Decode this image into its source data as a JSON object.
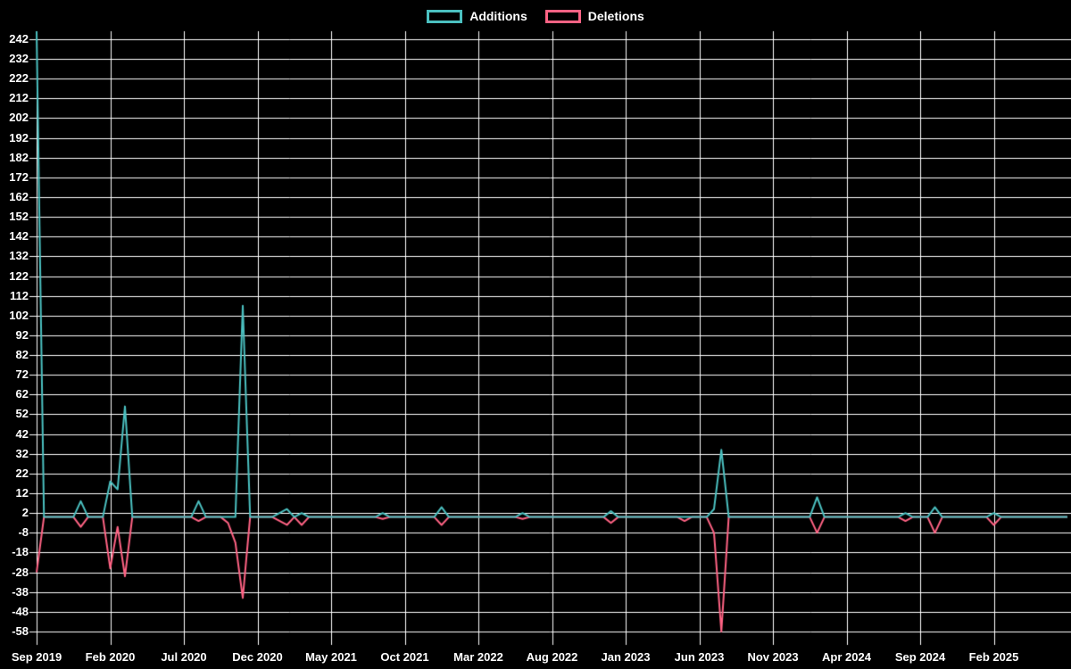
{
  "chart_data": {
    "type": "line",
    "title": "",
    "xlabel": "",
    "ylabel": "",
    "background_color": "#000000",
    "grid": true,
    "grid_color": "#ffffff",
    "text_color": "#ffffff",
    "legend_position": "top",
    "ylim": [
      -58,
      246
    ],
    "y_ticks": [
      -58,
      -48,
      -38,
      -28,
      -18,
      -8,
      2,
      12,
      22,
      32,
      42,
      52,
      62,
      72,
      82,
      92,
      102,
      112,
      122,
      132,
      142,
      152,
      162,
      172,
      182,
      192,
      202,
      212,
      222,
      232,
      242
    ],
    "x_ticks": [
      {
        "label": "Sep 2019",
        "date": "2019-09"
      },
      {
        "label": "Feb 2020",
        "date": "2020-02"
      },
      {
        "label": "Jul 2020",
        "date": "2020-07"
      },
      {
        "label": "Dec 2020",
        "date": "2020-12"
      },
      {
        "label": "May 2021",
        "date": "2021-05"
      },
      {
        "label": "Oct 2021",
        "date": "2021-10"
      },
      {
        "label": "Mar 2022",
        "date": "2022-03"
      },
      {
        "label": "Aug 2022",
        "date": "2022-08"
      },
      {
        "label": "Jan 2023",
        "date": "2023-01"
      },
      {
        "label": "Jun 2023",
        "date": "2023-06"
      },
      {
        "label": "Nov 2023",
        "date": "2023-11"
      },
      {
        "label": "Apr 2024",
        "date": "2024-04"
      },
      {
        "label": "Sep 2024",
        "date": "2024-09"
      },
      {
        "label": "Feb 2025",
        "date": "2025-02"
      }
    ],
    "series": [
      {
        "name": "Additions",
        "color": "#4bc0c0"
      },
      {
        "name": "Deletions",
        "color": "#ff6384"
      }
    ],
    "columns": [
      "date",
      "additions",
      "deletions"
    ],
    "points": [
      [
        "2019-09",
        246,
        -28
      ],
      [
        "2019-09-15",
        0,
        0
      ],
      [
        "2019-10",
        0,
        0
      ],
      [
        "2019-11",
        0,
        0
      ],
      [
        "2019-11-15",
        0,
        0
      ],
      [
        "2019-12",
        8,
        -5
      ],
      [
        "2019-12-15",
        0,
        0
      ],
      [
        "2020-01",
        0,
        0
      ],
      [
        "2020-01-15",
        0,
        0
      ],
      [
        "2020-02",
        18,
        -26
      ],
      [
        "2020-02-15",
        14,
        -5
      ],
      [
        "2020-03",
        56,
        -30
      ],
      [
        "2020-03-15",
        0,
        0
      ],
      [
        "2020-04",
        0,
        0
      ],
      [
        "2020-05",
        0,
        0
      ],
      [
        "2020-06",
        0,
        0
      ],
      [
        "2020-07",
        0,
        0
      ],
      [
        "2020-07-15",
        0,
        0
      ],
      [
        "2020-08",
        8,
        -2
      ],
      [
        "2020-08-15",
        0,
        0
      ],
      [
        "2020-09",
        0,
        0
      ],
      [
        "2020-09-15",
        0,
        0
      ],
      [
        "2020-10",
        0,
        -3
      ],
      [
        "2020-10-15",
        0,
        -13
      ],
      [
        "2020-11",
        107,
        -41
      ],
      [
        "2020-11-15",
        0,
        0
      ],
      [
        "2020-12",
        0,
        0
      ],
      [
        "2021-01",
        0,
        0
      ],
      [
        "2021-02",
        4,
        -4
      ],
      [
        "2021-02-15",
        0,
        0
      ],
      [
        "2021-03",
        2,
        -4
      ],
      [
        "2021-03-15",
        0,
        0
      ],
      [
        "2021-04",
        0,
        0
      ],
      [
        "2021-05",
        0,
        0
      ],
      [
        "2021-06",
        0,
        0
      ],
      [
        "2021-07",
        0,
        0
      ],
      [
        "2021-08",
        0,
        0
      ],
      [
        "2021-08-15",
        2,
        -1
      ],
      [
        "2021-09",
        0,
        0
      ],
      [
        "2021-10",
        0,
        0
      ],
      [
        "2021-11",
        0,
        0
      ],
      [
        "2021-12",
        0,
        0
      ],
      [
        "2021-12-15",
        5,
        -4
      ],
      [
        "2022-01",
        0,
        0
      ],
      [
        "2022-02",
        0,
        0
      ],
      [
        "2022-03",
        0,
        0
      ],
      [
        "2022-04",
        0,
        0
      ],
      [
        "2022-05",
        0,
        0
      ],
      [
        "2022-05-15",
        0,
        0
      ],
      [
        "2022-06",
        2,
        -1
      ],
      [
        "2022-06-15",
        0,
        0
      ],
      [
        "2022-07",
        0,
        0
      ],
      [
        "2022-08",
        0,
        0
      ],
      [
        "2022-09",
        0,
        0
      ],
      [
        "2022-10",
        0,
        0
      ],
      [
        "2022-11",
        0,
        0
      ],
      [
        "2022-11-15",
        0,
        0
      ],
      [
        "2022-12",
        3,
        -3
      ],
      [
        "2022-12-15",
        0,
        0
      ],
      [
        "2023-01",
        0,
        0
      ],
      [
        "2023-02",
        0,
        0
      ],
      [
        "2023-03",
        0,
        0
      ],
      [
        "2023-04",
        0,
        0
      ],
      [
        "2023-04-15",
        0,
        0
      ],
      [
        "2023-05",
        0,
        -2
      ],
      [
        "2023-05-15",
        0,
        0
      ],
      [
        "2023-06",
        0,
        0
      ],
      [
        "2023-06-15",
        0,
        0
      ],
      [
        "2023-07",
        4,
        -8
      ],
      [
        "2023-07-15",
        34,
        -58
      ],
      [
        "2023-08",
        0,
        0
      ],
      [
        "2023-09",
        0,
        0
      ],
      [
        "2023-10",
        0,
        0
      ],
      [
        "2023-11",
        0,
        0
      ],
      [
        "2023-12",
        0,
        0
      ],
      [
        "2024-01",
        0,
        0
      ],
      [
        "2024-01-15",
        0,
        0
      ],
      [
        "2024-02",
        10,
        -8
      ],
      [
        "2024-02-15",
        0,
        0
      ],
      [
        "2024-03",
        0,
        0
      ],
      [
        "2024-04",
        0,
        0
      ],
      [
        "2024-05",
        0,
        0
      ],
      [
        "2024-06",
        0,
        0
      ],
      [
        "2024-07",
        0,
        0
      ],
      [
        "2024-07-15",
        0,
        0
      ],
      [
        "2024-08",
        2,
        -2
      ],
      [
        "2024-08-15",
        0,
        0
      ],
      [
        "2024-09",
        0,
        0
      ],
      [
        "2024-09-15",
        0,
        0
      ],
      [
        "2024-10",
        5,
        -8
      ],
      [
        "2024-10-15",
        0,
        0
      ],
      [
        "2024-11",
        0,
        0
      ],
      [
        "2024-12",
        0,
        0
      ],
      [
        "2025-01",
        0,
        0
      ],
      [
        "2025-01-15",
        0,
        0
      ],
      [
        "2025-02",
        2,
        -4
      ],
      [
        "2025-02-15",
        0,
        0
      ],
      [
        "2025-03",
        0,
        0
      ],
      [
        "2025-04",
        0,
        0
      ],
      [
        "2025-05",
        0,
        0
      ],
      [
        "2025-06",
        0,
        0
      ],
      [
        "2025-07",
        0,
        0
      ]
    ]
  }
}
